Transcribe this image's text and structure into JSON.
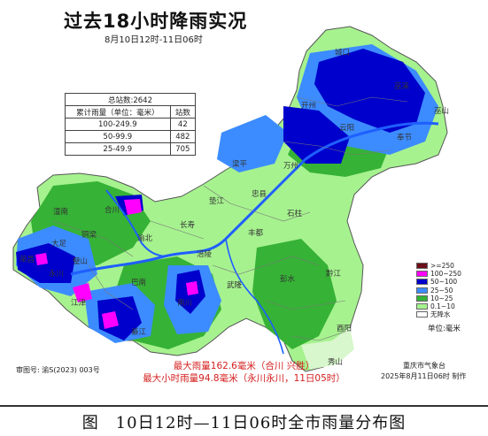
{
  "map": {
    "title": "过去18小时降雨实况",
    "subtitle": "8月10日12时-11日06时",
    "stats_table": {
      "total_label": "总站数:2642",
      "headers": [
        "累计雨量（单位：毫米）",
        "站数"
      ],
      "rows": [
        {
          "range": "100-249.9",
          "count": "42"
        },
        {
          "range": "50-99.9",
          "count": "482"
        },
        {
          "range": "25-49.9",
          "count": "705"
        }
      ]
    },
    "legend": {
      "items": [
        {
          "label": ">=250",
          "color": "#6b0f1a"
        },
        {
          "label": "100~250",
          "color": "#ff00ff"
        },
        {
          "label": "50~100",
          "color": "#0000cc"
        },
        {
          "label": "25~50",
          "color": "#3c8cff"
        },
        {
          "label": "10~25",
          "color": "#36b236"
        },
        {
          "label": "0.1~10",
          "color": "#a6f28f"
        },
        {
          "label": "无降水",
          "color": "#ffffff"
        }
      ],
      "unit": "单位:毫米"
    },
    "places": [
      "城口",
      "巫溪",
      "开州",
      "云阳",
      "奉节",
      "巫山",
      "万州",
      "梁平",
      "垫江",
      "忠县",
      "石柱",
      "长寿",
      "丰都",
      "涪陵",
      "武隆",
      "彭水",
      "黔江",
      "酉阳",
      "秀山",
      "渝北",
      "合川",
      "潼南",
      "大足",
      "璧山",
      "江津",
      "綦江",
      "南川",
      "永川",
      "荣昌",
      "铜梁",
      "巴南"
    ],
    "approval_number": "审图号: 渝S(2023) 003号",
    "max_rainfall": "最大雨量162.6毫米（合川 兴胜）",
    "max_hourly": "最大小时雨量94.8毫米（永川永川，11日05时）",
    "issuer": "重庆市气象台",
    "issue_time": "2025年8月11日06时 制作"
  },
  "caption": "图　10日12时—11日06时全市雨量分布图"
}
